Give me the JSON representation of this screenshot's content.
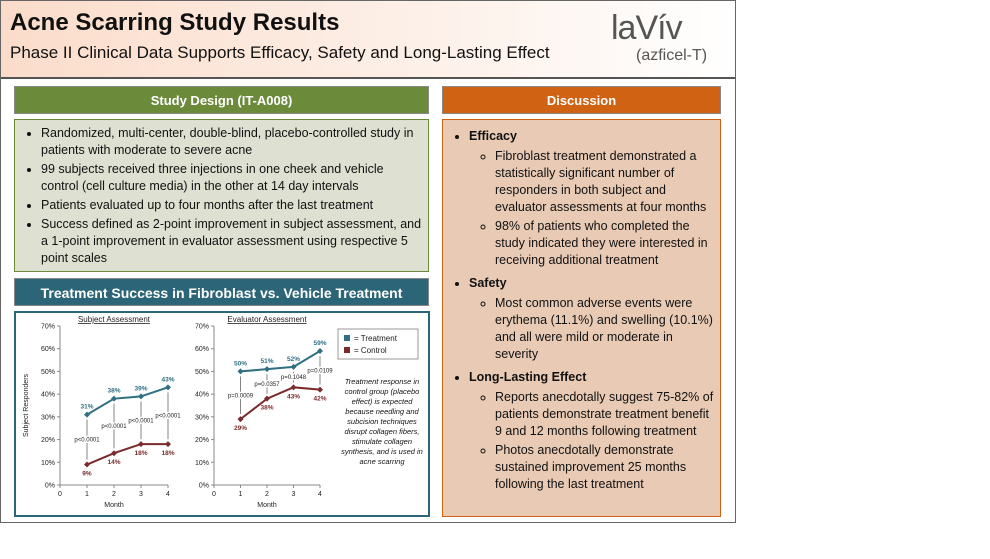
{
  "header": {
    "title": "Acne Scarring Study Results",
    "subtitle": "Phase II Clinical Data Supports Efficacy, Safety and Long-Lasting Effect",
    "logo": "laVív",
    "logo_sub": "(azficel-T)"
  },
  "study_design": {
    "title": "Study Design (IT-A008)",
    "bullets": [
      "Randomized, multi-center, double-blind, placebo-controlled study in patients with moderate to severe acne",
      "99 subjects received three injections in one cheek and vehicle control (cell culture media) in the other at 14 day intervals",
      "Patients evaluated up to four months after the last treatment",
      "Success defined as 2-point improvement in subject assessment, and a 1-point improvement in evaluator assessment using respective 5 point scales"
    ]
  },
  "chart_section_title": "Treatment Success in Fibroblast vs. Vehicle Treatment",
  "chart_note": "Treatment response in control group (placebo effect) is expected because needling and subcision techniques disrupt collagen fibers, stimulate collagen synthesis, and is used in acne scarring",
  "chart_data": [
    {
      "type": "line",
      "title": "Subject Assessment",
      "y_label": "Subject Responders",
      "x_label": "Month",
      "x": [
        1,
        2,
        3,
        4
      ],
      "xlim": [
        0,
        4
      ],
      "xticks": [
        0,
        1,
        2,
        3,
        4
      ],
      "ylim": [
        0,
        70
      ],
      "yticks": [
        {
          "value": 0,
          "label": "0%"
        },
        {
          "value": 10,
          "label": "10%"
        },
        {
          "value": 20,
          "label": "20%"
        },
        {
          "value": 30,
          "label": "30%"
        },
        {
          "value": 40,
          "label": "40%"
        },
        {
          "value": 50,
          "label": "50%"
        },
        {
          "value": 60,
          "label": "60%"
        },
        {
          "value": 70,
          "label": "70%"
        }
      ],
      "series": [
        {
          "name": "= Treatment",
          "color": "#2f6f82",
          "values": [
            31,
            38,
            39,
            43
          ],
          "value_labels": [
            "31%",
            "38%",
            "39%",
            "43%"
          ]
        },
        {
          "name": "= Control",
          "color": "#7a2b2b",
          "values": [
            9,
            14,
            18,
            18
          ],
          "value_labels": [
            "9%",
            "14%",
            "18%",
            "18%"
          ]
        }
      ],
      "annotations": [
        "p<0.0001",
        "p<0.0001",
        "p<0.0001",
        "p<0.0001"
      ]
    },
    {
      "type": "line",
      "title": "Evaluator Assessment",
      "x_label": "Month",
      "x": [
        1,
        2,
        3,
        4
      ],
      "xlim": [
        0,
        4
      ],
      "xticks": [
        0,
        1,
        2,
        3,
        4
      ],
      "ylim": [
        0,
        70
      ],
      "yticks": [
        {
          "value": 0,
          "label": "0%"
        },
        {
          "value": 10,
          "label": "10%"
        },
        {
          "value": 20,
          "label": "20%"
        },
        {
          "value": 30,
          "label": "30%"
        },
        {
          "value": 40,
          "label": "40%"
        },
        {
          "value": 50,
          "label": "50%"
        },
        {
          "value": 60,
          "label": "60%"
        },
        {
          "value": 70,
          "label": "70%"
        }
      ],
      "series": [
        {
          "color": "#2f6f82",
          "values": [
            50,
            51,
            52,
            59
          ],
          "value_labels": [
            "50%",
            "51%",
            "52%",
            "59%"
          ]
        },
        {
          "color": "#7a2b2b",
          "values": [
            29,
            38,
            43,
            42
          ],
          "value_labels": [
            "29%",
            "38%",
            "43%",
            "42%"
          ]
        }
      ],
      "annotations": [
        "p=0.0009",
        "p=0.0357",
        "p=0.1048",
        "p=0.0109"
      ]
    }
  ],
  "discussion": {
    "title": "Discussion",
    "sections": [
      {
        "heading": "Efficacy",
        "items": [
          "Fibroblast treatment demonstrated a statistically significant number of responders in both subject and evaluator assessments at four months",
          "98% of patients who completed the study indicated they were interested in receiving additional treatment"
        ]
      },
      {
        "heading": "Safety",
        "items": [
          "Most common adverse events were erythema (11.1%) and swelling (10.1%) and all were mild or moderate in severity"
        ]
      },
      {
        "heading": "Long-Lasting Effect",
        "items": [
          "Reports anecdotally suggest 75-82% of patients demonstrate treatment benefit 9 and 12 months following treatment",
          "Photos anecdotally demonstrate sustained improvement 25 months following the last treatment"
        ]
      }
    ]
  }
}
